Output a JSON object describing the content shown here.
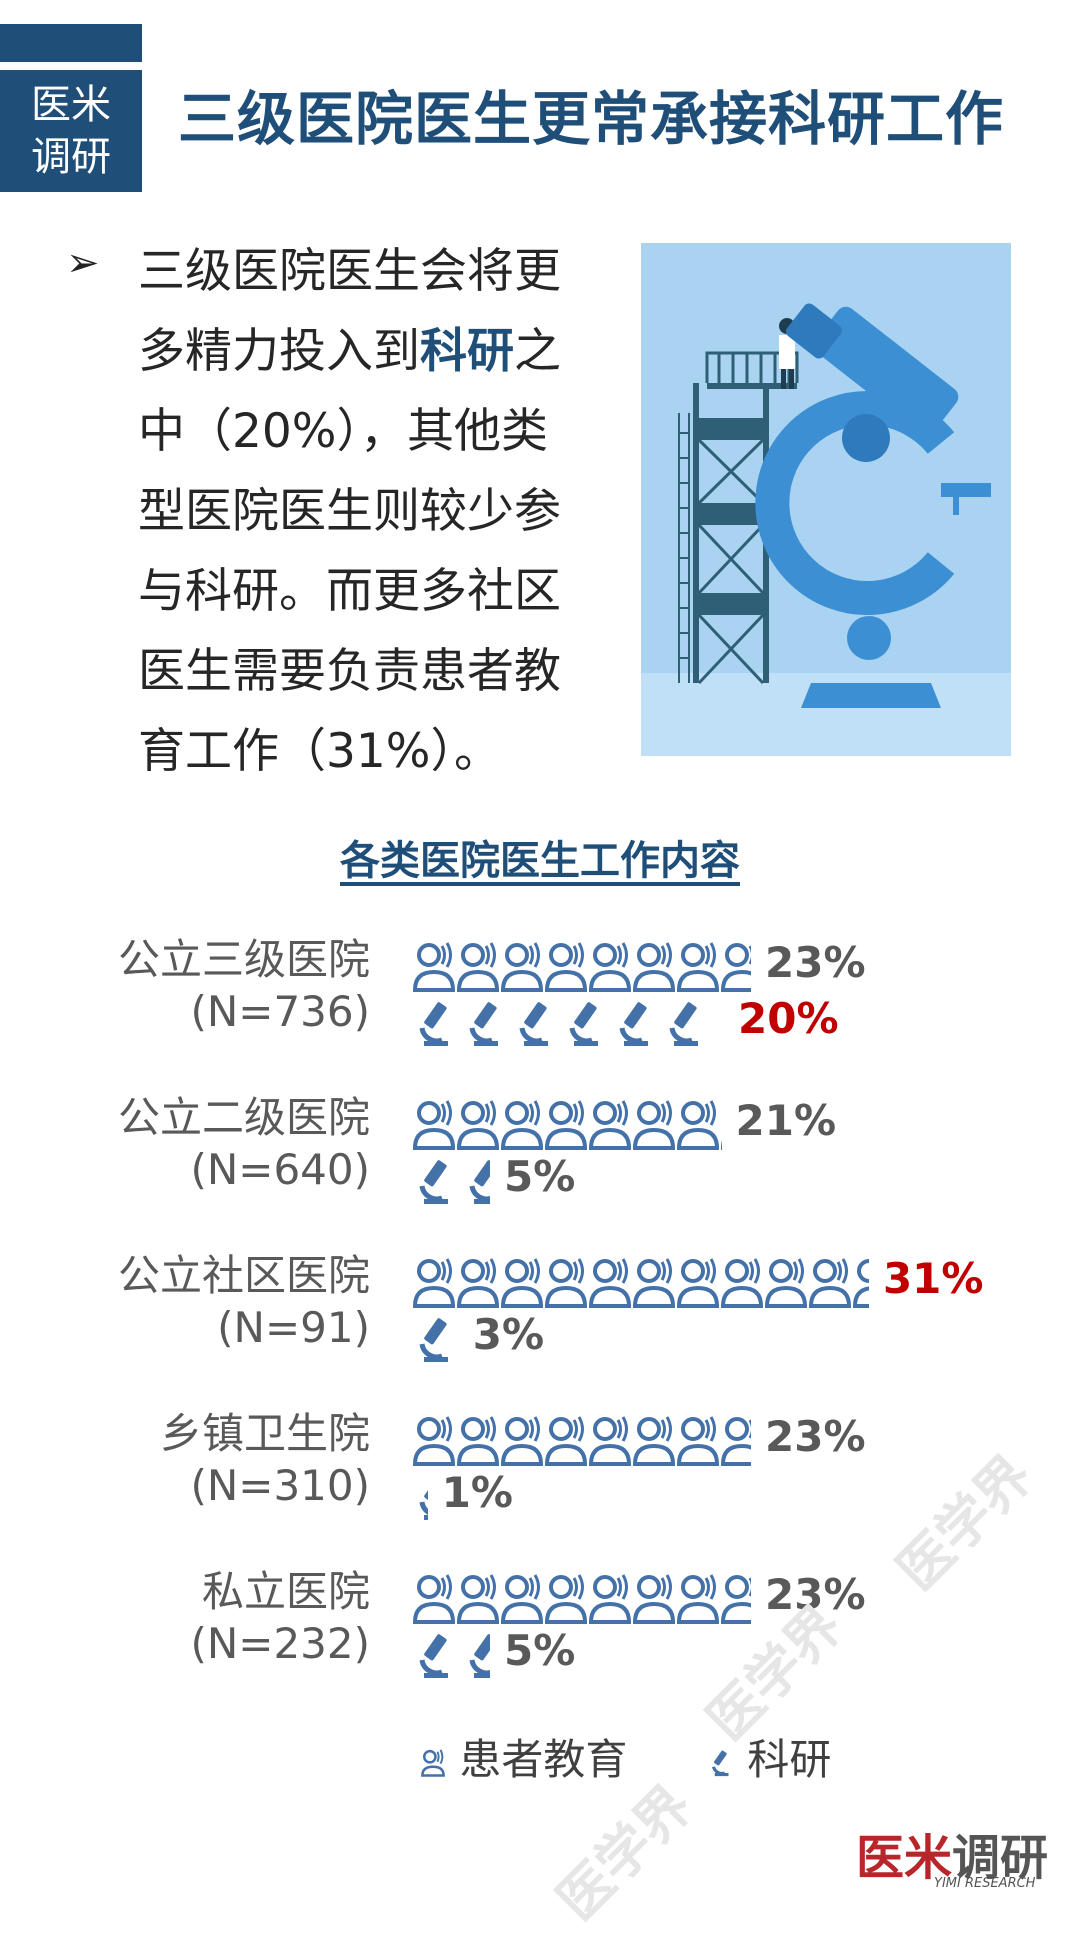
{
  "badge": {
    "line1": "医米",
    "line2": "调研"
  },
  "title": "三级医院医生更常承接科研工作",
  "description": {
    "part1": "三级医院医生会将更多精力投入到",
    "highlight": "科研",
    "part2": "之中（20%），其他类型医院医生则较少参与科研。而更多社区医生需要负责患者教育工作（31%）。"
  },
  "chart_data": {
    "type": "bar",
    "title": "各类医院医生工作内容",
    "categories": [
      {
        "name": "公立三级医院",
        "n": "(N=736)"
      },
      {
        "name": "公立二级医院",
        "n": "(N=640)"
      },
      {
        "name": "公立社区医院",
        "n": "(N=91)"
      },
      {
        "name": "乡镇卫生院",
        "n": "(N=310)"
      },
      {
        "name": "私立医院",
        "n": "(N=232)"
      }
    ],
    "series": [
      {
        "name": "患者教育",
        "values": [
          23,
          21,
          31,
          23,
          23
        ],
        "labels": [
          "23%",
          "21%",
          "31%",
          "23%",
          "23%"
        ],
        "highlight": [
          false,
          false,
          true,
          false,
          false
        ]
      },
      {
        "name": "科研",
        "values": [
          20,
          5,
          3,
          1,
          5
        ],
        "labels": [
          "20%",
          "5%",
          "3%",
          "1%",
          "5%"
        ],
        "highlight": [
          true,
          false,
          false,
          false,
          false
        ]
      }
    ],
    "legend": [
      "患者教育",
      "科研"
    ]
  },
  "colors": {
    "primary": "#1f4e79",
    "icon": "#4472a8",
    "highlight": "#c00000",
    "illustration_bg": "#a9d3f1"
  },
  "watermark": "医学界",
  "logo": {
    "red": "医米",
    "dark": "调研",
    "sub": "YIMI RESEARCH"
  }
}
